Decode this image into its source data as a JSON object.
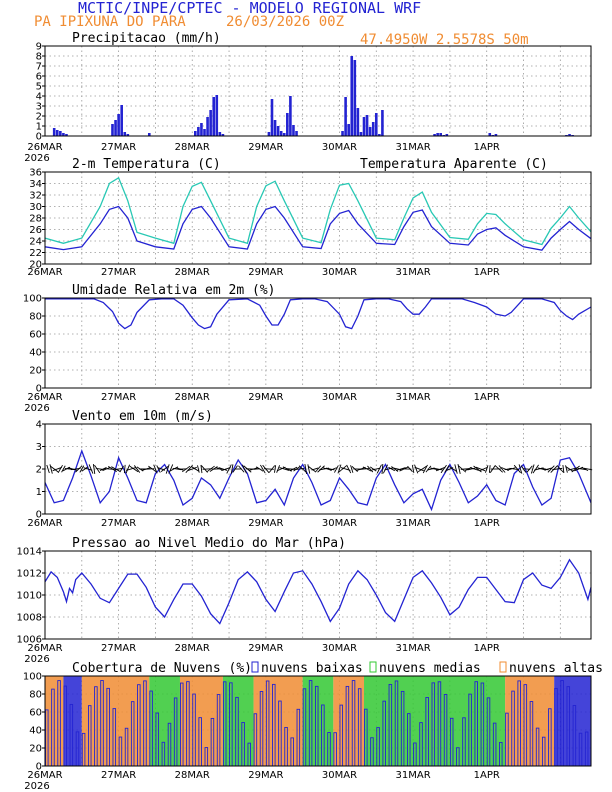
{
  "header": {
    "title": "MCTIC/INPE/CPTEC - MODELO REGIONAL WRF",
    "location": "PA IPIXUNA DO PARA",
    "run": "26/03/2026 00Z",
    "coords": "47.4950W 2.5578S 50m"
  },
  "colors": {
    "blue": "#2323d2",
    "orange": "#f08c32",
    "teal": "#28c8b4",
    "green": "#32c832",
    "grid": "#999999"
  },
  "x_axis": {
    "labels": [
      "26MAR",
      "27MAR",
      "28MAR",
      "29MAR",
      "30MAR",
      "31MAR",
      "1APR"
    ],
    "year": "2026"
  },
  "legend": {
    "apparent": "Temperatura Aparente (C)",
    "low": "nuvens baixas",
    "mid": "nuvens medias",
    "high": "nuvens altas"
  },
  "chart_data": [
    {
      "id": "precip",
      "type": "bar",
      "title": "Precipitacao (mm/h)",
      "ylim": [
        0,
        9
      ],
      "yticks": [
        0,
        1,
        2,
        3,
        4,
        5,
        6,
        7,
        8,
        9
      ],
      "x_hours": [
        3,
        4,
        5,
        6,
        7,
        22,
        23,
        24,
        25,
        26,
        27,
        34,
        49,
        50,
        51,
        52,
        53,
        54,
        55,
        56,
        57,
        58,
        73,
        74,
        75,
        76,
        77,
        78,
        79,
        80,
        81,
        82,
        97,
        98,
        99,
        100,
        101,
        102,
        103,
        104,
        105,
        106,
        107,
        108,
        109,
        110,
        127,
        128,
        129,
        130,
        131,
        145,
        146,
        147,
        170,
        171,
        172
      ],
      "values": [
        0.8,
        0.6,
        0.5,
        0.3,
        0.2,
        1.2,
        1.6,
        2.2,
        3.1,
        0.4,
        0.2,
        0.3,
        0.5,
        0.9,
        1.3,
        0.7,
        1.9,
        2.6,
        3.9,
        4.1,
        0.4,
        0.2,
        0.4,
        3.7,
        1.6,
        1.0,
        0.5,
        0.3,
        2.3,
        4.0,
        1.1,
        0.5,
        0.5,
        3.9,
        1.2,
        8.0,
        7.6,
        2.8,
        0.4,
        1.9,
        2.1,
        0.9,
        1.4,
        2.3,
        0.2,
        2.6,
        0.2,
        0.3,
        0.3,
        0.1,
        0.2,
        0.3,
        0.1,
        0.2,
        0.1,
        0.2,
        0.1
      ]
    },
    {
      "id": "temp",
      "type": "line",
      "title": "2-m Temperatura (C)",
      "ylim": [
        20,
        36
      ],
      "yticks": [
        20,
        22,
        24,
        26,
        28,
        30,
        32,
        34,
        36
      ],
      "series": [
        {
          "name": "2-m Temperatura (C)",
          "color": "blue",
          "x": [
            0,
            6,
            12,
            18,
            21,
            24,
            27,
            30,
            36,
            42,
            45,
            48,
            51,
            54,
            60,
            66,
            69,
            72,
            75,
            78,
            84,
            90,
            93,
            96,
            99,
            102,
            108,
            114,
            117,
            120,
            123,
            126,
            132,
            138,
            141,
            144,
            147,
            150,
            156,
            162,
            165,
            168,
            171,
            174,
            178
          ],
          "y": [
            23,
            22.5,
            23,
            27,
            29.5,
            30,
            28,
            24,
            23,
            22.6,
            27,
            29.5,
            30,
            28,
            23,
            22.6,
            27,
            29.5,
            30,
            28,
            23,
            22.7,
            27,
            28.8,
            29.3,
            27,
            23.6,
            23.4,
            26.5,
            29,
            29.4,
            26.5,
            23.6,
            23.3,
            25.2,
            26,
            26.3,
            25,
            23,
            22.4,
            24.5,
            26,
            27.4,
            26,
            24.4
          ]
        },
        {
          "name": "Temperatura Aparente (C)",
          "color": "teal",
          "x": [
            0,
            6,
            12,
            18,
            21,
            24,
            27,
            30,
            36,
            42,
            45,
            48,
            51,
            54,
            60,
            66,
            69,
            72,
            75,
            78,
            84,
            90,
            93,
            96,
            99,
            102,
            108,
            114,
            117,
            120,
            123,
            126,
            132,
            138,
            141,
            144,
            147,
            150,
            156,
            162,
            165,
            168,
            171,
            174,
            178
          ],
          "y": [
            24.5,
            23.6,
            24.5,
            30,
            34,
            35,
            31,
            25.5,
            24.5,
            23.6,
            30,
            33.5,
            34.2,
            31,
            24.5,
            23.6,
            30,
            33.6,
            34.4,
            31,
            24.5,
            23.7,
            29.5,
            33.7,
            34,
            31,
            24.5,
            24.2,
            28,
            31.5,
            32.5,
            29,
            24.6,
            24.3,
            27,
            28.8,
            28.6,
            27,
            24.2,
            23.4,
            26.2,
            28,
            30,
            28,
            25.6
          ]
        }
      ]
    },
    {
      "id": "rh",
      "type": "line",
      "title": "Umidade Relativa em 2m (%)",
      "ylim": [
        0,
        100
      ],
      "yticks": [
        0,
        20,
        40,
        60,
        80,
        100
      ],
      "series": [
        {
          "name": "Umidade Relativa em 2m (%)",
          "color": "blue",
          "x": [
            0,
            4,
            8,
            12,
            16,
            19,
            22,
            24,
            26,
            28,
            30,
            34,
            38,
            42,
            45,
            48,
            50,
            52,
            54,
            56,
            60,
            66,
            70,
            72,
            74,
            76,
            78,
            80,
            84,
            88,
            92,
            96,
            98,
            100,
            102,
            104,
            108,
            112,
            116,
            118,
            120,
            122,
            124,
            126,
            130,
            136,
            140,
            144,
            147,
            150,
            152,
            156,
            162,
            166,
            168,
            170,
            172,
            174,
            178
          ],
          "y": [
            99,
            99,
            99,
            99,
            99,
            95,
            85,
            72,
            66,
            70,
            84,
            98,
            99,
            99,
            92,
            78,
            70,
            66,
            68,
            82,
            98,
            99,
            92,
            80,
            70,
            70,
            82,
            98,
            99,
            99,
            96,
            82,
            68,
            66,
            80,
            98,
            99,
            99,
            96,
            88,
            82,
            82,
            90,
            99,
            99,
            99,
            95,
            90,
            82,
            80,
            84,
            99,
            99,
            95,
            86,
            80,
            76,
            82,
            90
          ]
        }
      ]
    },
    {
      "id": "wind",
      "type": "line",
      "title": "Vento em 10m (m/s)",
      "ylim": [
        0,
        4
      ],
      "yticks": [
        0,
        1,
        2,
        3,
        4
      ],
      "series": [
        {
          "name": "Vento em 10m (m/s)",
          "color": "blue",
          "x": [
            0,
            3,
            6,
            9,
            12,
            15,
            18,
            21,
            24,
            27,
            30,
            33,
            36,
            39,
            42,
            45,
            48,
            51,
            54,
            57,
            60,
            63,
            66,
            69,
            72,
            75,
            78,
            81,
            84,
            87,
            90,
            93,
            96,
            99,
            102,
            105,
            108,
            111,
            114,
            117,
            120,
            123,
            126,
            129,
            132,
            135,
            138,
            141,
            144,
            147,
            150,
            153,
            156,
            159,
            162,
            165,
            168,
            171,
            174,
            178
          ],
          "y": [
            1.4,
            0.5,
            0.6,
            1.6,
            2.8,
            1.7,
            0.5,
            1.0,
            2.5,
            1.6,
            0.6,
            0.5,
            1.8,
            2.2,
            1.5,
            0.4,
            0.7,
            1.6,
            1.3,
            0.7,
            1.6,
            2.4,
            1.8,
            0.5,
            0.6,
            1.1,
            0.4,
            1.6,
            2.2,
            1.4,
            0.4,
            0.6,
            1.6,
            1.1,
            0.5,
            0.4,
            1.6,
            2.2,
            1.3,
            0.5,
            0.9,
            1.1,
            0.2,
            1.5,
            2.2,
            1.4,
            0.5,
            0.8,
            1.3,
            0.6,
            0.4,
            1.8,
            2.2,
            1.2,
            0.4,
            0.7,
            2.4,
            2.5,
            1.8,
            0.5
          ]
        }
      ]
    },
    {
      "id": "press",
      "type": "line",
      "title": "Pressao ao Nivel Medio do Mar (hPa)",
      "ylim": [
        1006,
        1014
      ],
      "yticks": [
        1006,
        1008,
        1010,
        1012,
        1014
      ],
      "series": [
        {
          "name": "Pressao ao Nivel Medio do Mar (hPa)",
          "color": "blue",
          "x": [
            0,
            2,
            4,
            6,
            7,
            8,
            9,
            10,
            12,
            15,
            18,
            21,
            24,
            27,
            30,
            33,
            36,
            39,
            42,
            45,
            48,
            51,
            54,
            57,
            60,
            63,
            66,
            69,
            72,
            75,
            78,
            81,
            84,
            87,
            90,
            93,
            96,
            99,
            102,
            105,
            108,
            111,
            114,
            117,
            120,
            123,
            126,
            129,
            132,
            135,
            138,
            141,
            144,
            147,
            150,
            153,
            156,
            159,
            162,
            165,
            168,
            171,
            174,
            177,
            178
          ],
          "y": [
            1011.2,
            1012.1,
            1011.6,
            1010.3,
            1009.4,
            1010.6,
            1010.2,
            1011.4,
            1012.0,
            1011.0,
            1009.7,
            1009.3,
            1010.6,
            1011.9,
            1011.9,
            1010.7,
            1008.9,
            1008.0,
            1009.6,
            1011.0,
            1011.0,
            1009.9,
            1008.3,
            1007.4,
            1009.3,
            1011.4,
            1012.1,
            1011.2,
            1009.6,
            1008.5,
            1010.3,
            1012.0,
            1012.2,
            1011.0,
            1009.4,
            1007.6,
            1008.8,
            1011.0,
            1012.2,
            1011.4,
            1010.0,
            1008.4,
            1007.6,
            1009.6,
            1011.6,
            1012.2,
            1011.1,
            1009.8,
            1008.2,
            1008.9,
            1010.5,
            1011.6,
            1011.6,
            1010.5,
            1009.4,
            1009.3,
            1011.4,
            1012.0,
            1010.9,
            1010.6,
            1011.6,
            1013.2,
            1012.0,
            1009.6,
            1010.7
          ]
        }
      ]
    },
    {
      "id": "clouds",
      "type": "bar",
      "title": "Cobertura de Nuvens (%)",
      "ylim": [
        0,
        100
      ],
      "yticks": [
        0,
        20,
        40,
        60,
        80,
        100
      ],
      "phases": [
        {
          "label": "nuvens altas",
          "start": 0,
          "end": 6
        },
        {
          "label": "nuvens baixas",
          "start": 6,
          "end": 12
        },
        {
          "label": "nuvens altas",
          "start": 12,
          "end": 34
        },
        {
          "label": "nuvens medias",
          "start": 34,
          "end": 44
        },
        {
          "label": "nuvens altas",
          "start": 44,
          "end": 58
        },
        {
          "label": "nuvens medias",
          "start": 58,
          "end": 68
        },
        {
          "label": "nuvens altas",
          "start": 68,
          "end": 84
        },
        {
          "label": "nuvens medias",
          "start": 84,
          "end": 94
        },
        {
          "label": "nuvens altas",
          "start": 94,
          "end": 104
        },
        {
          "label": "nuvens medias",
          "start": 104,
          "end": 150
        },
        {
          "label": "nuvens altas",
          "start": 150,
          "end": 166
        },
        {
          "label": "nuvens baixas",
          "start": 166,
          "end": 178
        }
      ]
    }
  ]
}
